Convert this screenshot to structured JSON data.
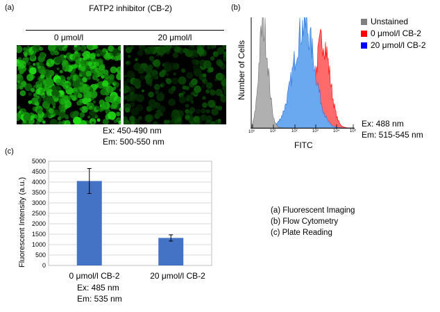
{
  "panel_a": {
    "label": "(a)",
    "header": "FATP2 inhibitor (CB-2)",
    "conditions": [
      "0 μmol/l",
      "20 μmol/l"
    ],
    "ex": "Ex: 450-490  nm",
    "em": "Em: 500-550  nm"
  },
  "panel_b": {
    "label": "(b)",
    "ylabel": "Number of Cells",
    "xlabel": "FITC",
    "ticks": [
      "10⁰",
      "10¹",
      "10²",
      "10³",
      "10⁴",
      "10⁵"
    ],
    "legend": [
      {
        "label": "Unstained",
        "color": "#808080"
      },
      {
        "label": "0 μmol/l CB-2",
        "color": "#ff0000"
      },
      {
        "label": "20 μmol/l CB-2",
        "color": "#0000ff"
      }
    ],
    "ex": "Ex: 488 nm",
    "em": "Em: 515-545  nm"
  },
  "panel_c": {
    "label": "(c)",
    "ex": "Ex:  485 nm",
    "em": "Em: 535 nm"
  },
  "figure_list": [
    "(a)  Fluorescent Imaging",
    "(b)  Flow Cytometry",
    "(c)  Plate Reading"
  ],
  "chart_data": [
    {
      "type": "bar",
      "title": "",
      "xlabel": "",
      "ylabel": "Fluorescent Intensity (a.u.)",
      "categories": [
        "0 μmol/l CB-2",
        "20 μmol/l CB-2"
      ],
      "values": [
        4050,
        1320
      ],
      "error": [
        600,
        150
      ],
      "ylim": [
        0,
        5000
      ],
      "yticks": [
        0,
        500,
        1000,
        1500,
        2000,
        2500,
        3000,
        3500,
        4000,
        4500,
        5000
      ],
      "bar_color": "#4472c4",
      "grid": true
    }
  ]
}
